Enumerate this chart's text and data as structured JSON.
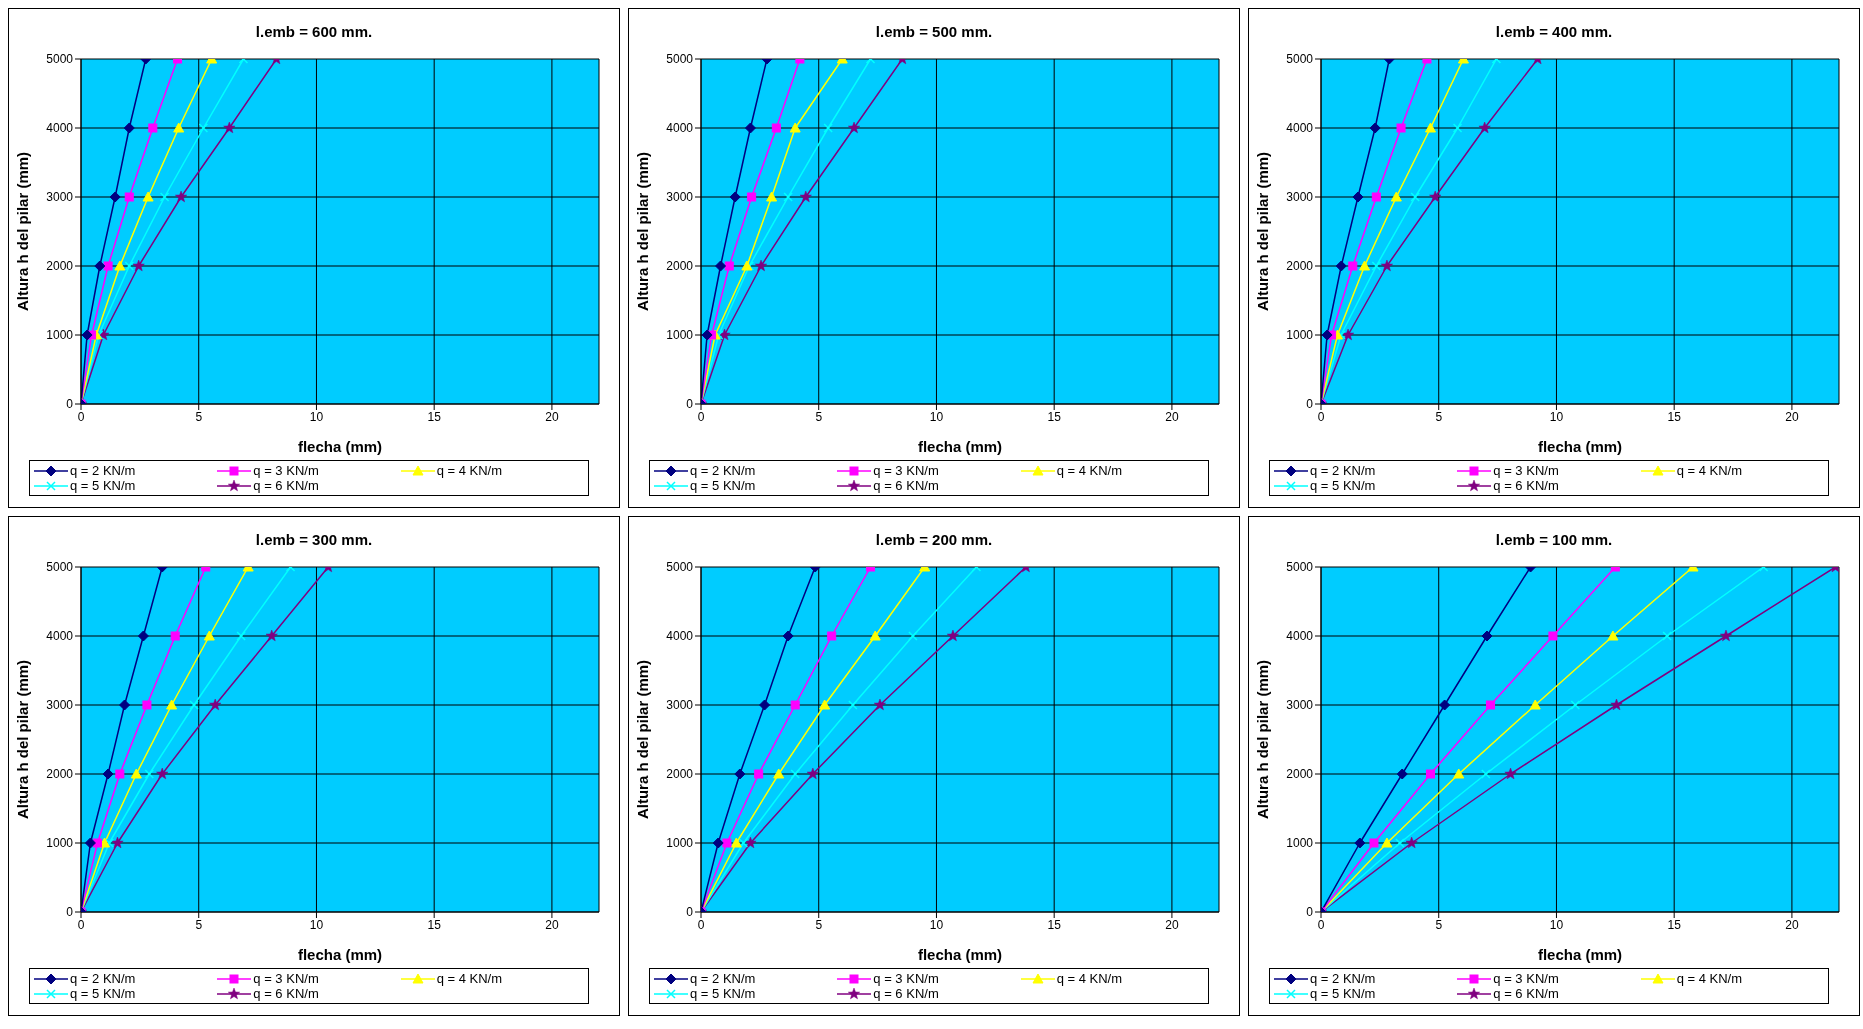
{
  "chart_data": [
    {
      "type": "line",
      "title": "l.emb = 600 mm.",
      "xlabel": "flecha (mm)",
      "ylabel": "Altura h del pilar (mm)",
      "xlim": [
        0,
        22
      ],
      "xticks": [
        0,
        5,
        10,
        15,
        20
      ],
      "ylim": [
        0,
        5000
      ],
      "yticks": [
        0,
        1000,
        2000,
        3000,
        4000,
        5000
      ],
      "grid": true,
      "legend": "bottom",
      "series": [
        {
          "name": "q = 2 KN/m",
          "color": "#000080",
          "marker": "diamond",
          "x": [
            0,
            0.26,
            0.8,
            1.45,
            2.05,
            2.75
          ],
          "values": [
            0,
            1000,
            2000,
            3000,
            4000,
            5000
          ]
        },
        {
          "name": "q = 3 KN/m",
          "color": "#ff00ff",
          "marker": "square",
          "x": [
            0,
            0.45,
            1.15,
            2.05,
            3.05,
            4.1
          ],
          "values": [
            0,
            1000,
            2000,
            3000,
            4000,
            5000
          ]
        },
        {
          "name": "q = 4 KN/m",
          "color": "#ffff00",
          "marker": "triangle",
          "x": [
            0,
            0.65,
            1.65,
            2.85,
            4.15,
            5.55
          ],
          "values": [
            0,
            1000,
            2000,
            3000,
            4000,
            5000
          ]
        },
        {
          "name": "q = 5 KN/m",
          "color": "#00ffff",
          "marker": "cross",
          "x": [
            0,
            0.75,
            2.05,
            3.55,
            5.2,
            6.9
          ],
          "values": [
            0,
            1000,
            2000,
            3000,
            4000,
            5000
          ]
        },
        {
          "name": "q = 6 KN/m",
          "color": "#800080",
          "marker": "star",
          "x": [
            0,
            0.95,
            2.45,
            4.25,
            6.3,
            8.3
          ],
          "values": [
            0,
            1000,
            2000,
            3000,
            4000,
            5000
          ]
        }
      ]
    },
    {
      "type": "line",
      "title": "l.emb = 500 mm.",
      "xlabel": "flecha (mm)",
      "ylabel": "Altura h del pilar (mm)",
      "xlim": [
        0,
        22
      ],
      "xticks": [
        0,
        5,
        10,
        15,
        20
      ],
      "ylim": [
        0,
        5000
      ],
      "yticks": [
        0,
        1000,
        2000,
        3000,
        4000,
        5000
      ],
      "grid": true,
      "legend": "bottom",
      "series": [
        {
          "name": "q = 2 KN/m",
          "color": "#000080",
          "marker": "diamond",
          "x": [
            0,
            0.26,
            0.83,
            1.45,
            2.1,
            2.8
          ],
          "values": [
            0,
            1000,
            2000,
            3000,
            4000,
            5000
          ]
        },
        {
          "name": "q = 3 KN/m",
          "color": "#ff00ff",
          "marker": "square",
          "x": [
            0,
            0.45,
            1.2,
            2.15,
            3.2,
            4.2
          ],
          "values": [
            0,
            1000,
            2000,
            3000,
            4000,
            5000
          ]
        },
        {
          "name": "q = 4 KN/m",
          "color": "#ffff00",
          "marker": "triangle",
          "x": [
            0,
            0.6,
            1.95,
            3.0,
            4.0,
            6.0
          ],
          "values": [
            0,
            1000,
            2000,
            3000,
            4000,
            5000
          ]
        },
        {
          "name": "q = 5 KN/m",
          "color": "#00ffff",
          "marker": "cross",
          "x": [
            0,
            0.75,
            2.05,
            3.7,
            5.4,
            7.2
          ],
          "values": [
            0,
            1000,
            2000,
            3000,
            4000,
            5000
          ]
        },
        {
          "name": "q = 6 KN/m",
          "color": "#800080",
          "marker": "star",
          "x": [
            0,
            1.0,
            2.55,
            4.45,
            6.5,
            8.55
          ],
          "values": [
            0,
            1000,
            2000,
            3000,
            4000,
            5000
          ]
        }
      ]
    },
    {
      "type": "line",
      "title": "l.emb = 400 mm.",
      "xlabel": "flecha (mm)",
      "ylabel": "Altura h del pilar (mm)",
      "xlim": [
        0,
        22
      ],
      "xticks": [
        0,
        5,
        10,
        15,
        20
      ],
      "ylim": [
        0,
        5000
      ],
      "yticks": [
        0,
        1000,
        2000,
        3000,
        4000,
        5000
      ],
      "grid": true,
      "legend": "bottom",
      "series": [
        {
          "name": "q = 2 KN/m",
          "color": "#000080",
          "marker": "diamond",
          "x": [
            0,
            0.26,
            0.86,
            1.57,
            2.3,
            2.9
          ],
          "values": [
            0,
            1000,
            2000,
            3000,
            4000,
            5000
          ]
        },
        {
          "name": "q = 3 KN/m",
          "color": "#ff00ff",
          "marker": "square",
          "x": [
            0,
            0.45,
            1.35,
            2.35,
            3.4,
            4.5
          ],
          "values": [
            0,
            1000,
            2000,
            3000,
            4000,
            5000
          ]
        },
        {
          "name": "q = 4 KN/m",
          "color": "#ffff00",
          "marker": "triangle",
          "x": [
            0,
            0.7,
            1.85,
            3.2,
            4.65,
            6.05
          ],
          "values": [
            0,
            1000,
            2000,
            3000,
            4000,
            5000
          ]
        },
        {
          "name": "q = 5 KN/m",
          "color": "#00ffff",
          "marker": "cross",
          "x": [
            0,
            0.85,
            2.35,
            4.0,
            5.8,
            7.45
          ],
          "values": [
            0,
            1000,
            2000,
            3000,
            4000,
            5000
          ]
        },
        {
          "name": "q = 6 KN/m",
          "color": "#800080",
          "marker": "star",
          "x": [
            0,
            1.15,
            2.8,
            4.85,
            6.95,
            9.2
          ],
          "values": [
            0,
            1000,
            2000,
            3000,
            4000,
            5000
          ]
        }
      ]
    },
    {
      "type": "line",
      "title": "l.emb = 300 mm.",
      "xlabel": "flecha (mm)",
      "ylabel": "Altura h del pilar (mm)",
      "xlim": [
        0,
        22
      ],
      "xticks": [
        0,
        5,
        10,
        15,
        20
      ],
      "ylim": [
        0,
        5000
      ],
      "yticks": [
        0,
        1000,
        2000,
        3000,
        4000,
        5000
      ],
      "grid": true,
      "legend": "bottom",
      "series": [
        {
          "name": "q = 2 KN/m",
          "color": "#000080",
          "marker": "diamond",
          "x": [
            0,
            0.4,
            1.15,
            1.85,
            2.65,
            3.45
          ],
          "values": [
            0,
            1000,
            2000,
            3000,
            4000,
            5000
          ]
        },
        {
          "name": "q = 3 KN/m",
          "color": "#ff00ff",
          "marker": "square",
          "x": [
            0,
            0.7,
            1.65,
            2.8,
            4.0,
            5.3
          ],
          "values": [
            0,
            1000,
            2000,
            3000,
            4000,
            5000
          ]
        },
        {
          "name": "q = 4 KN/m",
          "color": "#ffff00",
          "marker": "triangle",
          "x": [
            0,
            1.0,
            2.35,
            3.85,
            5.45,
            7.1
          ],
          "values": [
            0,
            1000,
            2000,
            3000,
            4000,
            5000
          ]
        },
        {
          "name": "q = 5 KN/m",
          "color": "#00ffff",
          "marker": "cross",
          "x": [
            0,
            1.2,
            2.9,
            4.8,
            6.8,
            8.9
          ],
          "values": [
            0,
            1000,
            2000,
            3000,
            4000,
            5000
          ]
        },
        {
          "name": "q = 6 KN/m",
          "color": "#800080",
          "marker": "star",
          "x": [
            0,
            1.55,
            3.45,
            5.7,
            8.1,
            10.5
          ],
          "values": [
            0,
            1000,
            2000,
            3000,
            4000,
            5000
          ]
        }
      ]
    },
    {
      "type": "line",
      "title": "l.emb = 200 mm.",
      "xlabel": "flecha (mm)",
      "ylabel": "Altura h del pilar (mm)",
      "xlim": [
        0,
        22
      ],
      "xticks": [
        0,
        5,
        10,
        15,
        20
      ],
      "ylim": [
        0,
        5000
      ],
      "yticks": [
        0,
        1000,
        2000,
        3000,
        4000,
        5000
      ],
      "grid": true,
      "legend": "bottom",
      "series": [
        {
          "name": "q = 2 KN/m",
          "color": "#000080",
          "marker": "diamond",
          "x": [
            0,
            0.73,
            1.65,
            2.7,
            3.7,
            4.85
          ],
          "values": [
            0,
            1000,
            2000,
            3000,
            4000,
            5000
          ]
        },
        {
          "name": "q = 3 KN/m",
          "color": "#ff00ff",
          "marker": "square",
          "x": [
            0,
            1.1,
            2.45,
            4.0,
            5.55,
            7.2
          ],
          "values": [
            0,
            1000,
            2000,
            3000,
            4000,
            5000
          ]
        },
        {
          "name": "q = 4 KN/m",
          "color": "#ffff00",
          "marker": "triangle",
          "x": [
            0,
            1.5,
            3.3,
            5.25,
            7.4,
            9.5
          ],
          "values": [
            0,
            1000,
            2000,
            3000,
            4000,
            5000
          ]
        },
        {
          "name": "q = 5 KN/m",
          "color": "#00ffff",
          "marker": "cross",
          "x": [
            0,
            1.8,
            4.0,
            6.45,
            9.0,
            11.7
          ],
          "values": [
            0,
            1000,
            2000,
            3000,
            4000,
            5000
          ]
        },
        {
          "name": "q = 6 KN/m",
          "color": "#800080",
          "marker": "star",
          "x": [
            0,
            2.1,
            4.75,
            7.6,
            10.7,
            13.8
          ],
          "values": [
            0,
            1000,
            2000,
            3000,
            4000,
            5000
          ]
        }
      ]
    },
    {
      "type": "line",
      "title": "l.emb = 100 mm.",
      "xlabel": "flecha (mm)",
      "ylabel": "Altura h del pilar (mm)",
      "xlim": [
        0,
        22
      ],
      "xticks": [
        0,
        5,
        10,
        15,
        20
      ],
      "ylim": [
        0,
        5000
      ],
      "yticks": [
        0,
        1000,
        2000,
        3000,
        4000,
        5000
      ],
      "grid": true,
      "legend": "bottom",
      "series": [
        {
          "name": "q = 2 KN/m",
          "color": "#000080",
          "marker": "diamond",
          "x": [
            0,
            1.65,
            3.45,
            5.25,
            7.05,
            8.9
          ],
          "values": [
            0,
            1000,
            2000,
            3000,
            4000,
            5000
          ]
        },
        {
          "name": "q = 3 KN/m",
          "color": "#ff00ff",
          "marker": "square",
          "x": [
            0,
            2.25,
            4.65,
            7.2,
            9.85,
            12.5
          ],
          "values": [
            0,
            1000,
            2000,
            3000,
            4000,
            5000
          ]
        },
        {
          "name": "q = 4 KN/m",
          "color": "#ffff00",
          "marker": "triangle",
          "x": [
            0,
            2.8,
            5.85,
            9.1,
            12.4,
            15.8
          ],
          "values": [
            0,
            1000,
            2000,
            3000,
            4000,
            5000
          ]
        },
        {
          "name": "q = 5 KN/m",
          "color": "#00ffff",
          "marker": "cross",
          "x": [
            0,
            3.35,
            7.0,
            10.8,
            14.7,
            18.8
          ],
          "values": [
            0,
            1000,
            2000,
            3000,
            4000,
            5000
          ]
        },
        {
          "name": "q = 6 KN/m",
          "color": "#800080",
          "marker": "star",
          "x": [
            0,
            3.85,
            8.05,
            12.55,
            17.2,
            21.85
          ],
          "values": [
            0,
            1000,
            2000,
            3000,
            4000,
            5000
          ]
        }
      ]
    }
  ]
}
